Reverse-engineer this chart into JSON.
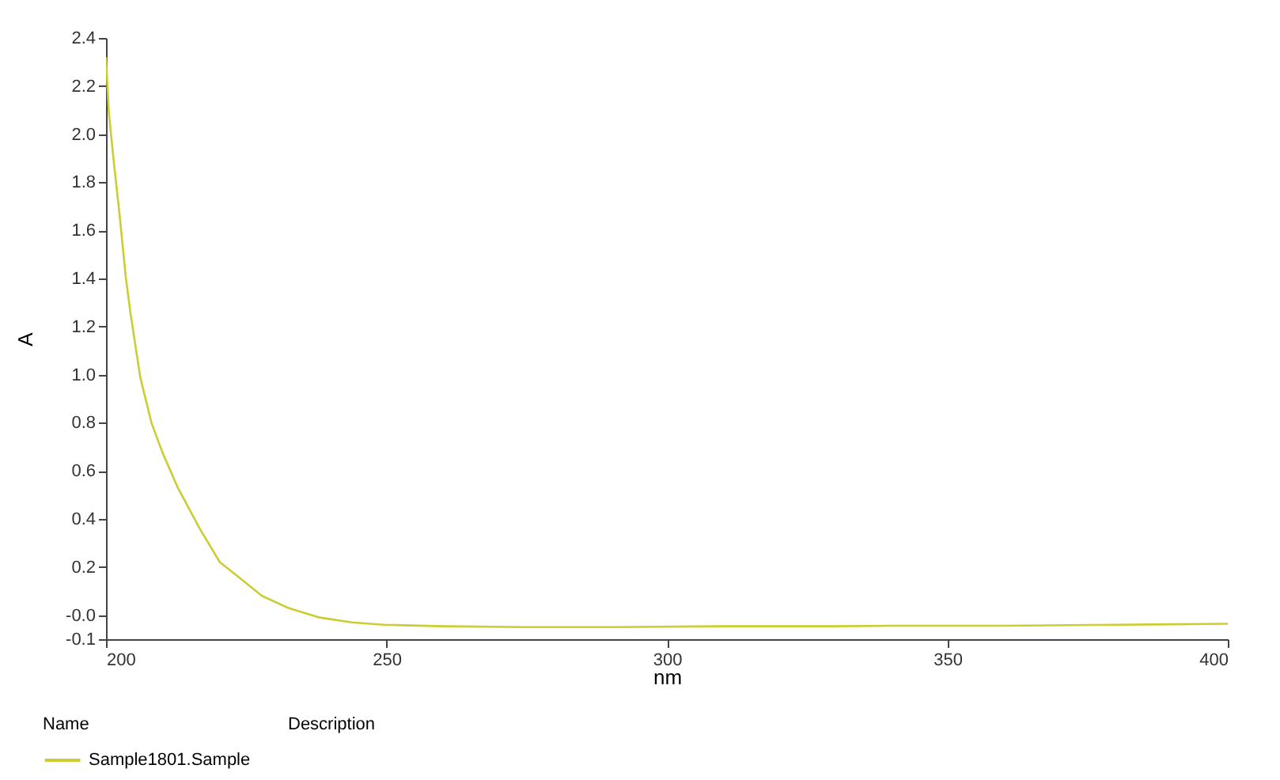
{
  "chart_data": {
    "type": "line",
    "xlabel": "nm",
    "ylabel": "A",
    "x": [
      200,
      200.5,
      201.5,
      202.4,
      203.5,
      204.4,
      206.1,
      208.1,
      210,
      212.8,
      216.7,
      220.3,
      224.1,
      227.8,
      232.5,
      238.1,
      243.8,
      249.5,
      260,
      275,
      290,
      310,
      330,
      340,
      360,
      380,
      390,
      400
    ],
    "series": [
      {
        "name": "Sample1801.Sample",
        "color": "#cccc33",
        "values": [
          2.32,
          2.09,
          1.86,
          1.67,
          1.41,
          1.25,
          0.99,
          0.8,
          0.68,
          0.53,
          0.36,
          0.22,
          0.15,
          0.08,
          0.03,
          -0.01,
          -0.03,
          -0.04,
          -0.046,
          -0.05,
          -0.05,
          -0.046,
          -0.046,
          -0.044,
          -0.044,
          -0.04,
          -0.038,
          -0.036
        ]
      }
    ],
    "xlim": [
      200,
      400
    ],
    "xticks": [
      200,
      250,
      300,
      350,
      400
    ],
    "ylim": [
      -0.1,
      2.4
    ],
    "yticks": [
      {
        "value": -0.1,
        "label": "-0.1"
      },
      {
        "value": 0,
        "label": "-0.0"
      },
      0.2,
      0.4,
      0.6,
      0.8,
      {
        "value": 1.0,
        "label": "1.0"
      },
      1.2,
      1.4,
      1.6,
      1.8,
      {
        "value": 2.0,
        "label": "2.0"
      },
      2.2,
      2.4
    ],
    "grid": false,
    "legend": "bottom",
    "legend_title": "Name",
    "annotations": [
      "Description"
    ],
    "line_style": "solid",
    "marker": "none"
  }
}
